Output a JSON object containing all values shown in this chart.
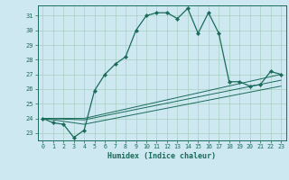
{
  "xlabel": "Humidex (Indice chaleur)",
  "ylabel": "",
  "bg_color": "#cde8f0",
  "grid_color": "#a8cfc0",
  "line_color": "#1a6b5a",
  "xlim": [
    -0.5,
    23.5
  ],
  "ylim": [
    22.5,
    31.7
  ],
  "yticks": [
    23,
    24,
    25,
    26,
    27,
    28,
    29,
    30,
    31
  ],
  "xticks": [
    0,
    1,
    2,
    3,
    4,
    5,
    6,
    7,
    8,
    9,
    10,
    11,
    12,
    13,
    14,
    15,
    16,
    17,
    18,
    19,
    20,
    21,
    22,
    23
  ],
  "series1_x": [
    0,
    1,
    2,
    3,
    4,
    5,
    6,
    7,
    8,
    9,
    10,
    11,
    12,
    13,
    14,
    15,
    16,
    17,
    18,
    19,
    20,
    21,
    22,
    23
  ],
  "series1_y": [
    24.0,
    23.7,
    23.6,
    22.7,
    23.2,
    25.9,
    27.0,
    27.7,
    28.2,
    30.0,
    31.0,
    31.2,
    31.2,
    30.8,
    31.5,
    29.8,
    31.2,
    29.8,
    26.5,
    26.5,
    26.2,
    26.3,
    27.2,
    27.0
  ],
  "series2_x": [
    0,
    4,
    23
  ],
  "series2_y": [
    24.0,
    24.0,
    27.0
  ],
  "series3_x": [
    0,
    4,
    23
  ],
  "series3_y": [
    24.0,
    23.9,
    26.6
  ],
  "series4_x": [
    0,
    4,
    23
  ],
  "series4_y": [
    24.0,
    23.6,
    26.2
  ]
}
